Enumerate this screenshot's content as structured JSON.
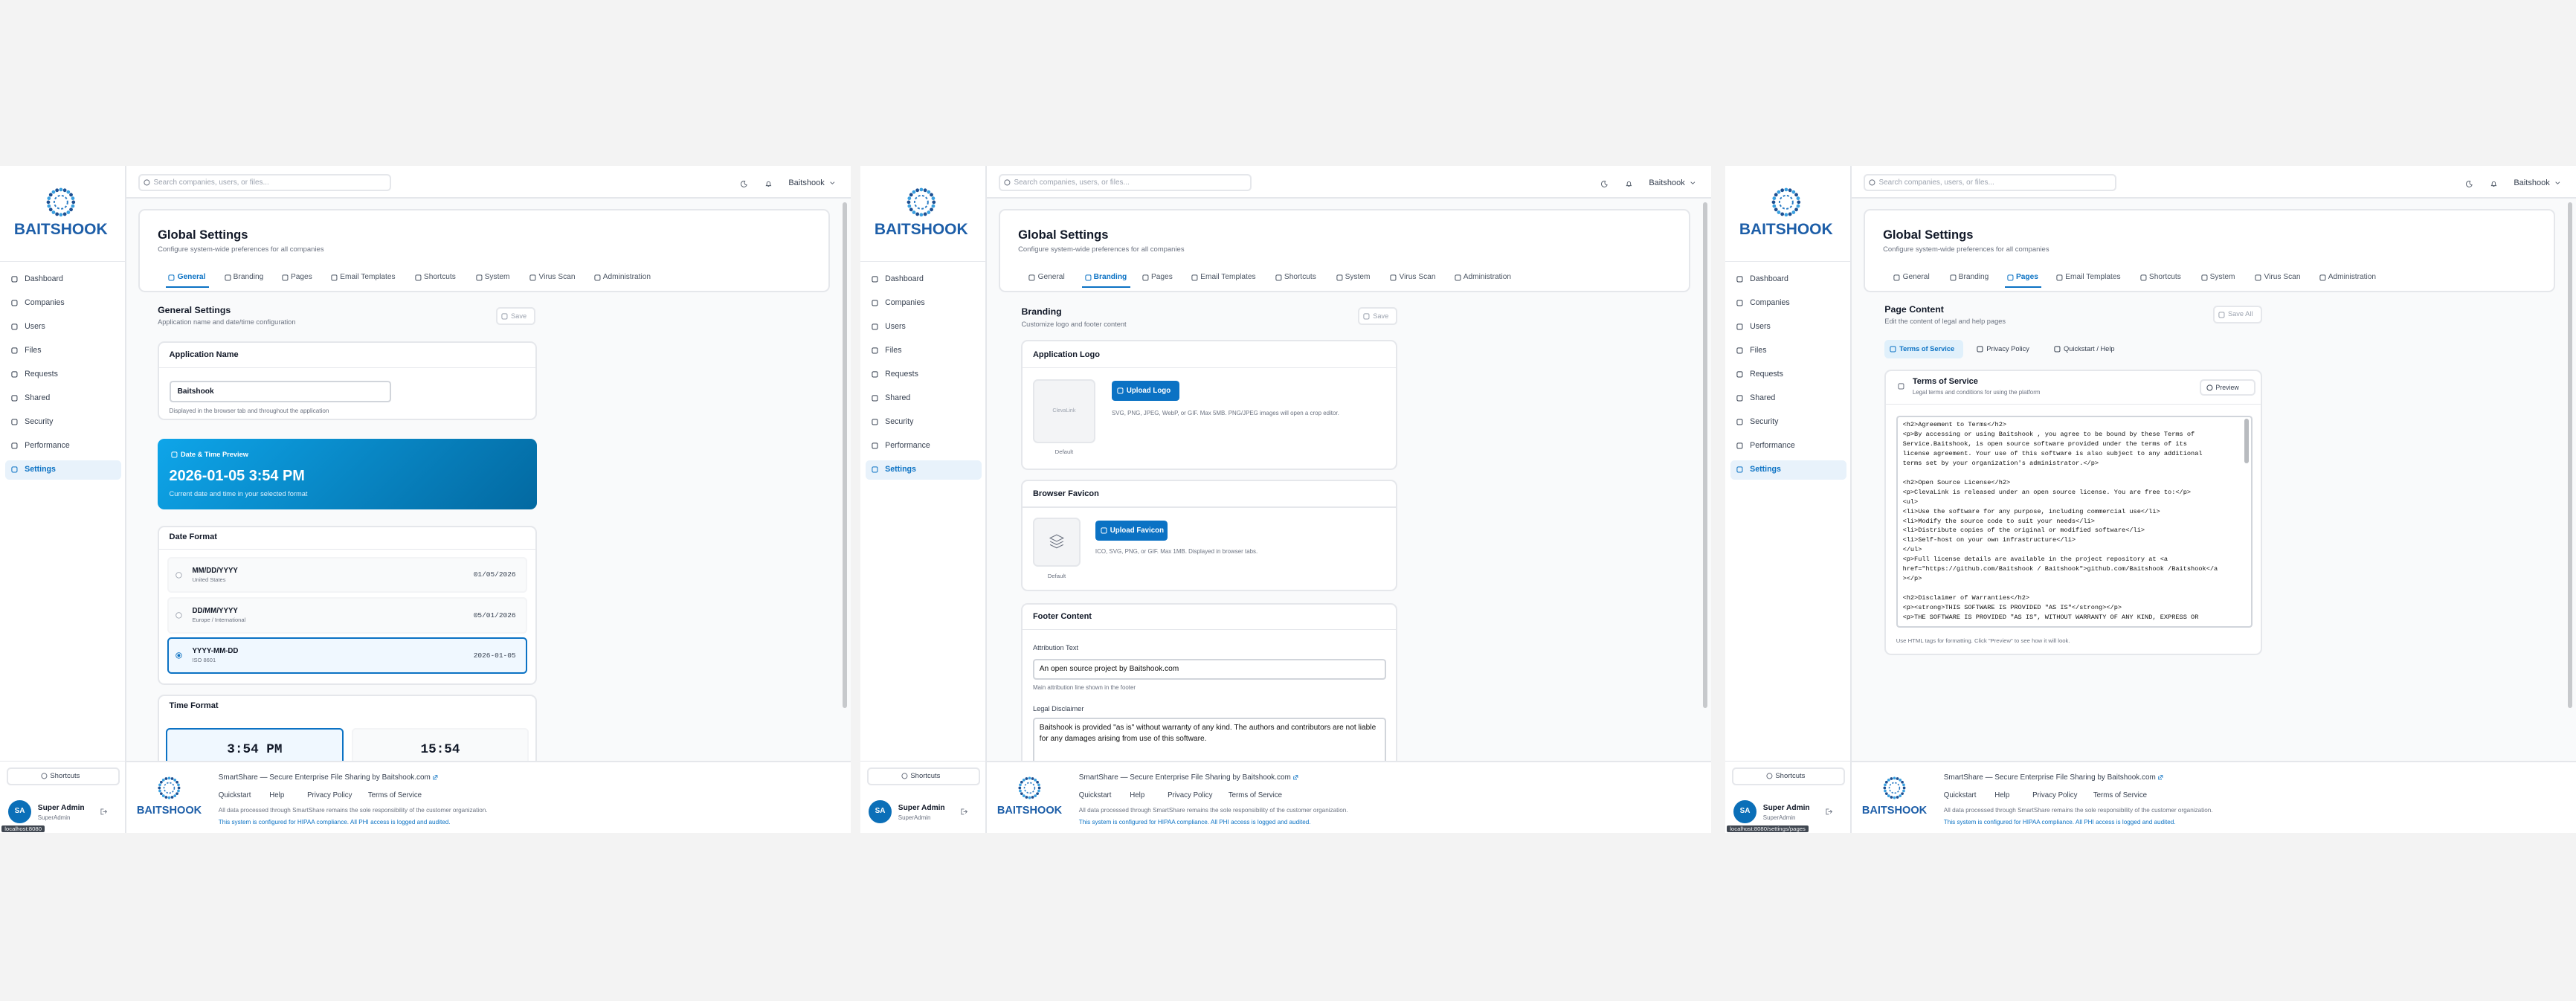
{
  "app": {
    "brand": "BAITSHOOK",
    "nav": [
      "Dashboard",
      "Companies",
      "Users",
      "Files",
      "Requests",
      "Shared",
      "Security",
      "Performance",
      "Settings"
    ],
    "active_nav": 8,
    "shortcuts": "Shortcuts",
    "user": {
      "initials": "SA",
      "name": "Super Admin",
      "role": "SuperAdmin"
    },
    "search": "Search companies, users, or files...",
    "account": "Baitshook",
    "page_title": "Global Settings",
    "page_subtitle": "Configure system-wide preferences for all companies",
    "tabs": [
      "General",
      "Branding",
      "Pages",
      "Email Templates",
      "Shortcuts",
      "System",
      "Virus Scan",
      "Administration"
    ],
    "footer": {
      "headline": "SmartShare — Secure Enterprise File Sharing by Baitshook.com",
      "links": [
        "Quickstart",
        "Help",
        "Privacy Policy",
        "Terms of Service"
      ],
      "notice": "All data processed through SmartShare remains the sole responsibility of the customer organization.",
      "hipaa": "This system is configured for HIPAA compliance. All PHI access is logged and audited."
    }
  },
  "panels": [
    {
      "active_tab": 0,
      "status": "localhost:8080",
      "section": {
        "title": "General Settings",
        "subtitle": "Application name and date/time configuration",
        "save": "Save"
      },
      "app_name": {
        "title": "Application Name",
        "value": "Baitshook",
        "help": "Displayed in the browser tab and throughout the application"
      },
      "preview": {
        "label": "Date & Time Preview",
        "value": "2026-01-05 3:54 PM",
        "caption": "Current date and time in your selected format"
      },
      "date_format": {
        "title": "Date Format",
        "options": [
          {
            "format": "MM/DD/YYYY",
            "region": "United States",
            "example": "01/05/2026"
          },
          {
            "format": "DD/MM/YYYY",
            "region": "Europe / International",
            "example": "05/01/2026"
          },
          {
            "format": "YYYY-MM-DD",
            "region": "ISO 8601",
            "example": "2026-01-05"
          }
        ],
        "selected": 2
      },
      "time_format": {
        "title": "Time Format",
        "options": [
          "3:54 PM",
          "15:54"
        ],
        "selected": 0
      }
    },
    {
      "active_tab": 1,
      "section": {
        "title": "Branding",
        "subtitle": "Customize logo and footer content",
        "save": "Save"
      },
      "logo": {
        "title": "Application Logo",
        "placeholder": "ClevaLink",
        "caption": "Default",
        "button": "Upload Logo",
        "hint": "SVG, PNG, JPEG, WebP, or GIF. Max 5MB. PNG/JPEG images will open a crop editor."
      },
      "favicon": {
        "title": "Browser Favicon",
        "caption": "Default",
        "button": "Upload Favicon",
        "hint": "ICO, SVG, PNG, or GIF. Max 1MB. Displayed in browser tabs."
      },
      "footer_content": {
        "title": "Footer Content",
        "attribution_label": "Attribution Text",
        "attribution_value": "An open source project by Baitshook.com",
        "attribution_help": "Main attribution line shown in the footer",
        "disclaimer_label": "Legal Disclaimer",
        "disclaimer_value": "Baitshook is provided \"as is\" without warranty of any kind. The authors and contributors are not liable for any damages arising from use of this software."
      }
    },
    {
      "active_tab": 2,
      "status": "localhost:8080/settings/pages",
      "section": {
        "title": "Page Content",
        "subtitle": "Edit the content of legal and help pages",
        "save": "Save All"
      },
      "page_tabs": [
        "Terms of Service",
        "Privacy Policy",
        "Quickstart / Help"
      ],
      "active_page_tab": 0,
      "editor": {
        "title": "Terms of Service",
        "subtitle": "Legal terms and conditions for using the platform",
        "preview": "Preview",
        "content": "<h2>Agreement to Terms</h2>\n<p>By accessing or using Baitshook , you agree to be bound by these Terms of\nService.Baitshook, is open source software provided under the terms of its\nlicense agreement. Your use of this software is also subject to any additional\nterms set by your organization's administrator.</p>\n\n<h2>Open Source License</h2>\n<p>ClevaLink is released under an open source license. You are free to:</p>\n<ul>\n<li>Use the software for any purpose, including commercial use</li>\n<li>Modify the source code to suit your needs</li>\n<li>Distribute copies of the original or modified software</li>\n<li>Self-host on your own infrastructure</li>\n</ul>\n<p>Full license details are available in the project repository at <a\nhref=\"https://github.com/Baitshook / Baitshook\">github.com/Baitshook /Baitshook</a\n></p>\n\n<h2>Disclaimer of Warranties</h2>\n<p><strong>THIS SOFTWARE IS PROVIDED \"AS IS\"</strong></p>\n<p>THE SOFTWARE IS PROVIDED \"AS IS\", WITHOUT WARRANTY OF ANY KIND, EXPRESS OR",
        "help": "Use HTML tags for formatting. Click \"Preview\" to see how it will look."
      }
    }
  ]
}
